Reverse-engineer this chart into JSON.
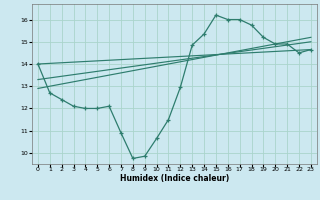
{
  "xlabel": "Humidex (Indice chaleur)",
  "background_color": "#cce8f0",
  "grid_color": "#aad4cc",
  "line_color": "#2e7d6e",
  "xlim": [
    -0.5,
    23.5
  ],
  "ylim": [
    9.5,
    16.7
  ],
  "yticks": [
    10,
    11,
    12,
    13,
    14,
    15,
    16
  ],
  "xticks": [
    0,
    1,
    2,
    3,
    4,
    5,
    6,
    7,
    8,
    9,
    10,
    11,
    12,
    13,
    14,
    15,
    16,
    17,
    18,
    19,
    20,
    21,
    22,
    23
  ],
  "main_x": [
    0,
    1,
    2,
    3,
    4,
    5,
    6,
    7,
    8,
    9,
    10,
    11,
    12,
    13,
    14,
    15,
    16,
    17,
    18,
    19,
    20,
    21,
    22,
    23
  ],
  "main_y": [
    14.0,
    12.7,
    12.4,
    12.1,
    12.0,
    12.0,
    12.1,
    10.9,
    9.75,
    9.85,
    10.65,
    11.5,
    12.95,
    14.85,
    15.35,
    16.2,
    16.0,
    16.0,
    15.75,
    15.2,
    14.9,
    14.9,
    14.5,
    14.65
  ],
  "line2_x": [
    0,
    23
  ],
  "line2_y": [
    14.0,
    14.65
  ],
  "line3_x": [
    0,
    23
  ],
  "line3_y": [
    13.3,
    15.0
  ],
  "line4_x": [
    0,
    23
  ],
  "line4_y": [
    12.9,
    15.2
  ]
}
